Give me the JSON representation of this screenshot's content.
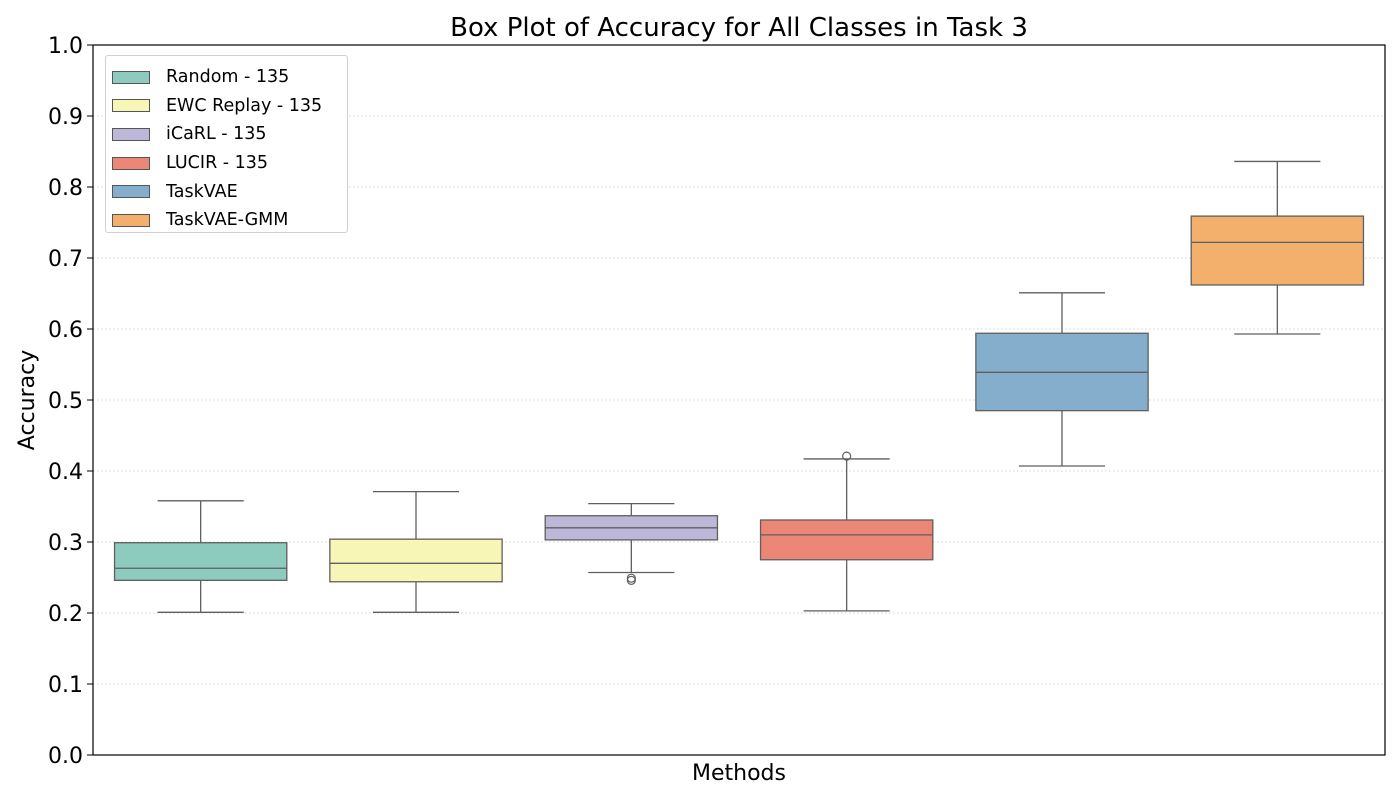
{
  "chart_data": {
    "type": "box",
    "title": "Box Plot of Accuracy for All Classes in Task 3",
    "xlabel": "Methods",
    "ylabel": "Accuracy",
    "ylim": [
      0.0,
      1.0
    ],
    "yticks": [
      "0.0",
      "0.1",
      "0.2",
      "0.3",
      "0.4",
      "0.5",
      "0.6",
      "0.7",
      "0.8",
      "0.9",
      "1.0"
    ],
    "grid": "y-dotted",
    "legend_position": "top-left",
    "series": [
      {
        "name": "Random - 135",
        "color": "#8dcbbf",
        "whisker_low": 0.201,
        "q1": 0.246,
        "median": 0.263,
        "q3": 0.299,
        "whisker_high": 0.358,
        "outliers": []
      },
      {
        "name": "EWC Replay - 135",
        "color": "#f7f6b7",
        "whisker_low": 0.201,
        "q1": 0.244,
        "median": 0.27,
        "q3": 0.304,
        "whisker_high": 0.371,
        "outliers": []
      },
      {
        "name": "iCaRL - 135",
        "color": "#beb8d8",
        "whisker_low": 0.257,
        "q1": 0.303,
        "median": 0.32,
        "q3": 0.337,
        "whisker_high": 0.354,
        "outliers": [
          0.246,
          0.249
        ]
      },
      {
        "name": "LUCIR - 135",
        "color": "#ec8677",
        "whisker_low": 0.203,
        "q1": 0.275,
        "median": 0.31,
        "q3": 0.331,
        "whisker_high": 0.417,
        "outliers": [
          0.421
        ]
      },
      {
        "name": "TaskVAE",
        "color": "#84aecb",
        "whisker_low": 0.407,
        "q1": 0.485,
        "median": 0.539,
        "q3": 0.594,
        "whisker_high": 0.651,
        "outliers": []
      },
      {
        "name": "TaskVAE-GMM",
        "color": "#f2b06c",
        "whisker_low": 0.593,
        "q1": 0.662,
        "median": 0.722,
        "q3": 0.759,
        "whisker_high": 0.836,
        "outliers": []
      }
    ]
  }
}
